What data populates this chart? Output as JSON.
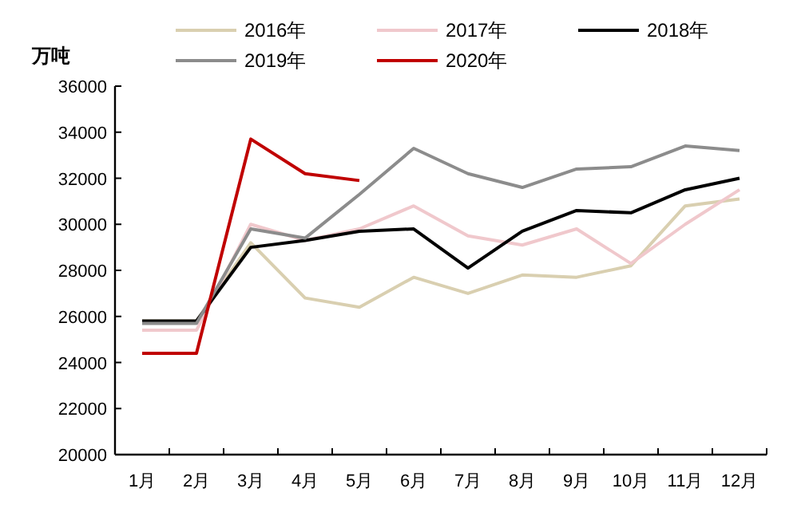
{
  "chart_data": {
    "type": "line",
    "ylabel": "万吨",
    "categories": [
      "1月",
      "2月",
      "3月",
      "4月",
      "5月",
      "6月",
      "7月",
      "8月",
      "9月",
      "10月",
      "11月",
      "12月"
    ],
    "ylim": [
      20000,
      36000
    ],
    "yticks": [
      20000,
      22000,
      24000,
      26000,
      28000,
      30000,
      32000,
      34000,
      36000
    ],
    "grid": false,
    "legend": "top",
    "marker": "none",
    "line_style": "solid",
    "series": [
      {
        "name": "2016年",
        "color": "#d9cfb0",
        "values": [
          25800,
          25800,
          29200,
          26800,
          26400,
          27700,
          27000,
          27800,
          27700,
          28200,
          30800,
          31100
        ]
      },
      {
        "name": "2017年",
        "color": "#f0c8cc",
        "values": [
          25400,
          25400,
          30000,
          29300,
          29800,
          30800,
          29500,
          29100,
          29800,
          28300,
          30000,
          31500
        ]
      },
      {
        "name": "2018年",
        "color": "#000000",
        "values": [
          25800,
          25800,
          29000,
          29300,
          29700,
          29800,
          28100,
          29700,
          30600,
          30500,
          31500,
          32000
        ]
      },
      {
        "name": "2019年",
        "color": "#8c8c8c",
        "values": [
          25700,
          25700,
          29800,
          29400,
          31300,
          33300,
          32200,
          31600,
          32400,
          32500,
          33400,
          33200
        ]
      },
      {
        "name": "2020年",
        "color": "#c00000",
        "values": [
          24400,
          24400,
          33700,
          32200,
          31900,
          null,
          null,
          null,
          null,
          null,
          null,
          null
        ]
      }
    ]
  }
}
